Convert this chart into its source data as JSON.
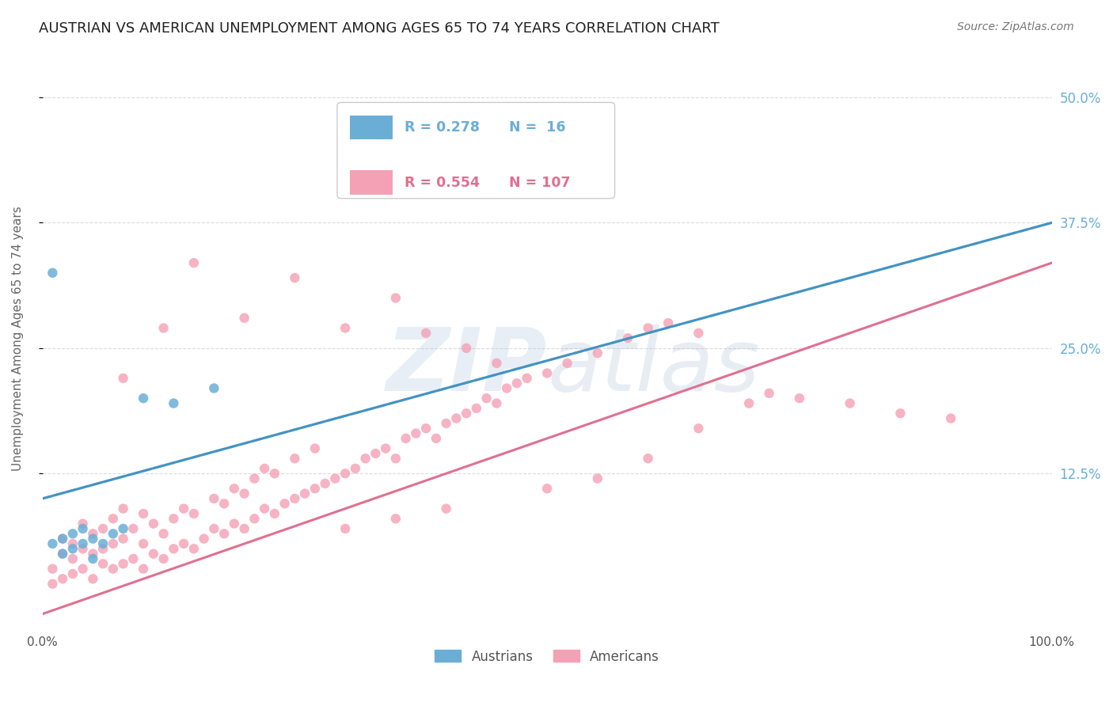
{
  "title": "AUSTRIAN VS AMERICAN UNEMPLOYMENT AMONG AGES 65 TO 74 YEARS CORRELATION CHART",
  "source": "Source: ZipAtlas.com",
  "ylabel": "Unemployment Among Ages 65 to 74 years",
  "xlim": [
    0,
    100
  ],
  "ylim": [
    -3,
    55
  ],
  "ytick_labels": [
    "12.5%",
    "25.0%",
    "37.5%",
    "50.0%"
  ],
  "ytick_values": [
    12.5,
    25.0,
    37.5,
    50.0
  ],
  "xtick_labels": [
    "0.0%",
    "100.0%"
  ],
  "xtick_values": [
    0,
    100
  ],
  "austrian_color": "#6aaed6",
  "austrian_line_color": "#4393c3",
  "american_color": "#f4a0b5",
  "american_line_color": "#e07090",
  "austrian_R": 0.278,
  "austrian_N": 16,
  "american_R": 0.554,
  "american_N": 107,
  "austrian_line_x0": 0,
  "austrian_line_y0": 10.0,
  "austrian_line_x1": 100,
  "austrian_line_y1": 37.5,
  "american_line_x0": 0,
  "american_line_y0": -1.5,
  "american_line_x1": 100,
  "american_line_y1": 33.5,
  "austrian_scatter": [
    [
      1,
      5.5
    ],
    [
      2,
      4.5
    ],
    [
      2,
      6.0
    ],
    [
      3,
      5.0
    ],
    [
      3,
      6.5
    ],
    [
      4,
      5.5
    ],
    [
      4,
      7.0
    ],
    [
      5,
      6.0
    ],
    [
      5,
      4.0
    ],
    [
      6,
      5.5
    ],
    [
      7,
      6.5
    ],
    [
      8,
      7.0
    ],
    [
      10,
      20.0
    ],
    [
      13,
      19.5
    ],
    [
      17,
      21.0
    ],
    [
      1,
      32.5
    ]
  ],
  "american_scatter": [
    [
      1,
      1.5
    ],
    [
      1,
      3.0
    ],
    [
      2,
      2.0
    ],
    [
      2,
      4.5
    ],
    [
      2,
      6.0
    ],
    [
      3,
      2.5
    ],
    [
      3,
      4.0
    ],
    [
      3,
      5.5
    ],
    [
      4,
      3.0
    ],
    [
      4,
      5.0
    ],
    [
      4,
      7.5
    ],
    [
      5,
      2.0
    ],
    [
      5,
      4.5
    ],
    [
      5,
      6.5
    ],
    [
      6,
      3.5
    ],
    [
      6,
      5.0
    ],
    [
      6,
      7.0
    ],
    [
      7,
      3.0
    ],
    [
      7,
      5.5
    ],
    [
      7,
      8.0
    ],
    [
      8,
      3.5
    ],
    [
      8,
      6.0
    ],
    [
      8,
      9.0
    ],
    [
      9,
      4.0
    ],
    [
      9,
      7.0
    ],
    [
      10,
      3.0
    ],
    [
      10,
      5.5
    ],
    [
      10,
      8.5
    ],
    [
      11,
      4.5
    ],
    [
      11,
      7.5
    ],
    [
      12,
      4.0
    ],
    [
      12,
      6.5
    ],
    [
      13,
      5.0
    ],
    [
      13,
      8.0
    ],
    [
      14,
      5.5
    ],
    [
      14,
      9.0
    ],
    [
      15,
      5.0
    ],
    [
      15,
      8.5
    ],
    [
      16,
      6.0
    ],
    [
      17,
      7.0
    ],
    [
      17,
      10.0
    ],
    [
      18,
      6.5
    ],
    [
      18,
      9.5
    ],
    [
      19,
      7.5
    ],
    [
      19,
      11.0
    ],
    [
      20,
      7.0
    ],
    [
      20,
      10.5
    ],
    [
      21,
      8.0
    ],
    [
      21,
      12.0
    ],
    [
      22,
      9.0
    ],
    [
      22,
      13.0
    ],
    [
      23,
      8.5
    ],
    [
      23,
      12.5
    ],
    [
      24,
      9.5
    ],
    [
      25,
      10.0
    ],
    [
      25,
      14.0
    ],
    [
      26,
      10.5
    ],
    [
      27,
      11.0
    ],
    [
      27,
      15.0
    ],
    [
      28,
      11.5
    ],
    [
      29,
      12.0
    ],
    [
      30,
      12.5
    ],
    [
      31,
      13.0
    ],
    [
      32,
      14.0
    ],
    [
      33,
      14.5
    ],
    [
      34,
      15.0
    ],
    [
      35,
      14.0
    ],
    [
      36,
      16.0
    ],
    [
      37,
      16.5
    ],
    [
      38,
      17.0
    ],
    [
      39,
      16.0
    ],
    [
      40,
      17.5
    ],
    [
      41,
      18.0
    ],
    [
      42,
      18.5
    ],
    [
      43,
      19.0
    ],
    [
      44,
      20.0
    ],
    [
      45,
      19.5
    ],
    [
      46,
      21.0
    ],
    [
      47,
      21.5
    ],
    [
      48,
      22.0
    ],
    [
      50,
      22.5
    ],
    [
      52,
      23.5
    ],
    [
      55,
      24.5
    ],
    [
      58,
      26.0
    ],
    [
      60,
      27.0
    ],
    [
      62,
      27.5
    ],
    [
      65,
      26.5
    ],
    [
      70,
      19.5
    ],
    [
      72,
      20.5
    ],
    [
      75,
      20.0
    ],
    [
      80,
      19.5
    ],
    [
      85,
      18.5
    ],
    [
      90,
      18.0
    ],
    [
      30,
      27.0
    ],
    [
      35,
      30.0
    ],
    [
      38,
      26.5
    ],
    [
      42,
      25.0
    ],
    [
      45,
      23.5
    ],
    [
      25,
      32.0
    ],
    [
      20,
      28.0
    ],
    [
      15,
      33.5
    ],
    [
      12,
      27.0
    ],
    [
      8,
      22.0
    ],
    [
      50,
      11.0
    ],
    [
      55,
      12.0
    ],
    [
      40,
      9.0
    ],
    [
      35,
      8.0
    ],
    [
      30,
      7.0
    ],
    [
      60,
      14.0
    ],
    [
      65,
      17.0
    ]
  ],
  "background_color": "#ffffff",
  "grid_color": "#cccccc",
  "watermark": "ZIPAtlas",
  "title_fontsize": 13,
  "source_fontsize": 10,
  "axis_label_fontsize": 11
}
